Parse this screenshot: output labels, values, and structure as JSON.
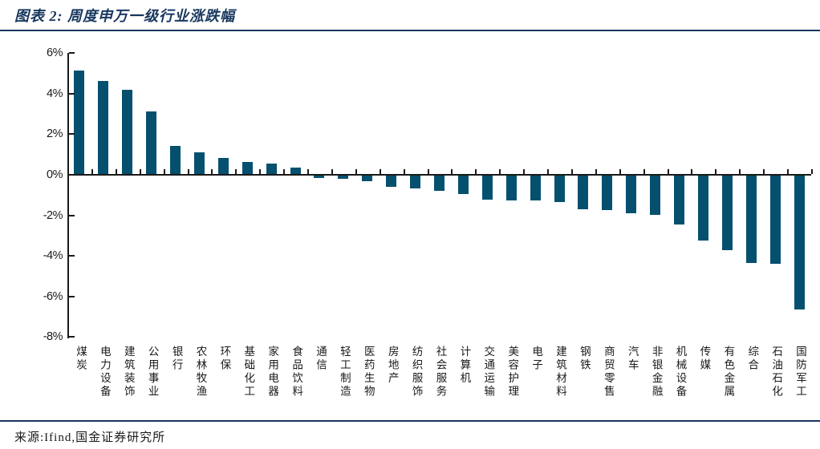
{
  "header": {
    "title": "图表 2: 周度申万一级行业涨跌幅"
  },
  "footer": {
    "source": "来源:Ifind,国金证券研究所"
  },
  "colors": {
    "accent_navy": "#17375E",
    "bar": "#05506F",
    "axis": "#1a1a1a"
  },
  "chart_data": {
    "type": "bar",
    "title": "周度申万一级行业涨跌幅",
    "xlabel": "",
    "ylabel": "",
    "unit": "%",
    "ylim": [
      -8,
      6
    ],
    "grid": false,
    "legend": "none",
    "ytick_labels": [
      "6%",
      "4%",
      "2%",
      "0%",
      "-2%",
      "-4%",
      "-6%",
      "-8%"
    ],
    "ytick_values": [
      6,
      4,
      2,
      0,
      -2,
      -4,
      -6,
      -8
    ],
    "categories": [
      "煤炭",
      "电力设备",
      "建筑装饰",
      "公用事业",
      "银行",
      "农林牧渔",
      "环保",
      "基础化工",
      "家用电器",
      "食品饮料",
      "通信",
      "轻工制造",
      "医药生物",
      "房地产",
      "纺织服饰",
      "社会服务",
      "计算机",
      "交通运输",
      "美容护理",
      "电子",
      "建筑材料",
      "钢铁",
      "商贸零售",
      "汽车",
      "非银金融",
      "机械设备",
      "传媒",
      "有色金属",
      "综合",
      "石油石化",
      "国防军工"
    ],
    "values": [
      5.1,
      4.6,
      4.15,
      3.1,
      1.4,
      1.05,
      0.8,
      0.6,
      0.5,
      0.3,
      -0.2,
      -0.25,
      -0.35,
      -0.65,
      -0.7,
      -0.85,
      -1.0,
      -1.25,
      -1.3,
      -1.3,
      -1.4,
      -1.75,
      -1.8,
      -1.95,
      -2.0,
      -2.5,
      -3.3,
      -3.75,
      -4.4,
      -4.45,
      -6.7
    ]
  }
}
